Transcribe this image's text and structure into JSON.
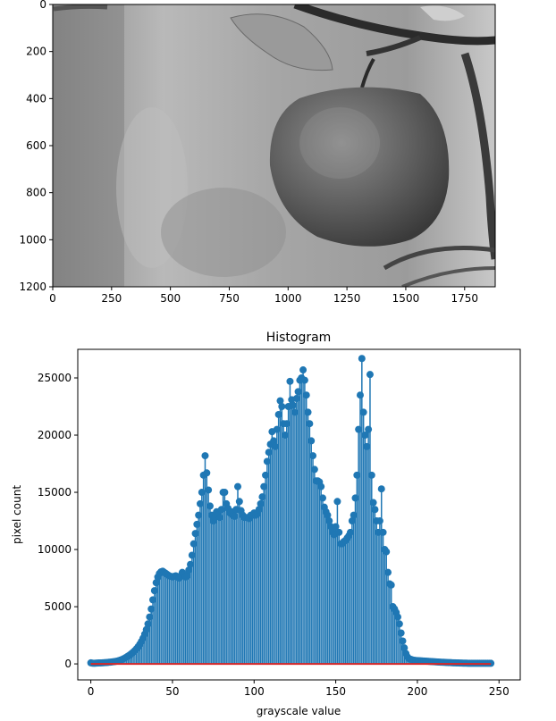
{
  "chart_data": [
    {
      "type": "image",
      "content": "grayscale photo of an apple hanging on a branch",
      "xlim": [
        0,
        1880
      ],
      "ylim": [
        1200,
        0
      ],
      "xticks": [
        0,
        250,
        500,
        750,
        1000,
        1250,
        1500,
        1750
      ],
      "yticks": [
        0,
        200,
        400,
        600,
        800,
        1000,
        1200
      ],
      "xticklabels": [
        "0",
        "250",
        "500",
        "750",
        "1000",
        "1250",
        "1500",
        "1750"
      ],
      "yticklabels": [
        "0",
        "200",
        "400",
        "600",
        "800",
        "1000",
        "1200"
      ]
    },
    {
      "type": "stem",
      "title": "Histogram",
      "xlabel": "grayscale value",
      "ylabel": "pixel count",
      "xlim": [
        -8,
        263
      ],
      "ylim": [
        -1400,
        27500
      ],
      "xticks": [
        0,
        50,
        100,
        150,
        200,
        250
      ],
      "yticks": [
        0,
        5000,
        10000,
        15000,
        20000,
        25000
      ],
      "xticklabels": [
        "0",
        "50",
        "100",
        "150",
        "200",
        "250"
      ],
      "yticklabels": [
        "0",
        "5000",
        "10000",
        "15000",
        "20000",
        "25000"
      ],
      "series_color": "#1f77b4",
      "baseline_color": "#d62728",
      "x_start": 0,
      "values": [
        90,
        60,
        50,
        60,
        70,
        80,
        80,
        90,
        100,
        110,
        120,
        140,
        150,
        170,
        190,
        210,
        240,
        280,
        330,
        380,
        450,
        520,
        610,
        700,
        800,
        910,
        1030,
        1170,
        1330,
        1510,
        1720,
        1960,
        2250,
        2600,
        3000,
        3500,
        4100,
        4800,
        5600,
        6400,
        7100,
        7600,
        7900,
        8050,
        8100,
        8000,
        7900,
        7800,
        7700,
        7650,
        7600,
        7650,
        7700,
        7600,
        7500,
        7700,
        8000,
        7800,
        7600,
        7700,
        8200,
        8700,
        9500,
        10500,
        11400,
        12200,
        13000,
        14000,
        15000,
        16500,
        18200,
        16700,
        15200,
        13800,
        13000,
        12500,
        12800,
        13300,
        13000,
        12800,
        13500,
        15000,
        15000,
        14000,
        13600,
        13200,
        13300,
        13000,
        12900,
        13500,
        15500,
        14200,
        13400,
        13000,
        12800,
        12800,
        12800,
        12700,
        13000,
        13000,
        13200,
        13000,
        13100,
        13500,
        14000,
        14600,
        15500,
        16500,
        17700,
        18500,
        19200,
        20300,
        19500,
        19000,
        20500,
        21800,
        23000,
        22500,
        21000,
        20000,
        21000,
        22500,
        24700,
        23100,
        22600,
        22000,
        23200,
        23800,
        24800,
        25000,
        25700,
        24800,
        23500,
        22000,
        21000,
        19500,
        18200,
        17000,
        16000,
        16000,
        15900,
        15500,
        14500,
        13700,
        13300,
        13000,
        12500,
        12000,
        11500,
        11300,
        12000,
        14200,
        11500,
        10500,
        10500,
        10700,
        10800,
        11000,
        11200,
        11500,
        12500,
        13000,
        14500,
        16500,
        20500,
        23500,
        26700,
        22000,
        20000,
        19000,
        20500,
        25300,
        16500,
        14100,
        13500,
        12500,
        11500,
        12500,
        15300,
        11500,
        10000,
        9800,
        8000,
        7000,
        6900,
        5000,
        4800,
        4500,
        4100,
        3500,
        2700,
        2000,
        1400,
        900,
        600,
        450,
        400,
        350,
        320,
        300,
        290,
        280,
        270,
        260,
        250,
        240,
        230,
        220,
        210,
        200,
        190,
        180,
        170,
        160,
        150,
        145,
        140,
        130,
        120,
        115,
        110,
        100,
        95,
        90,
        85,
        80,
        75,
        70,
        65,
        60,
        60,
        55,
        55,
        50,
        50,
        50,
        50,
        50,
        50,
        50,
        50,
        50,
        50,
        50,
        50,
        50
      ]
    }
  ]
}
